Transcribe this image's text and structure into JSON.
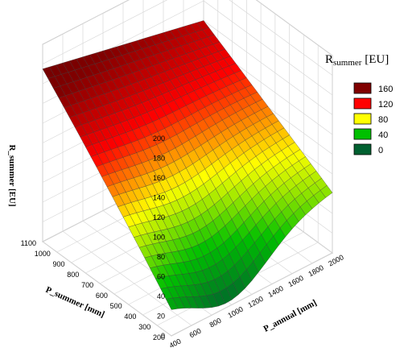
{
  "chart_data": {
    "type": "surface3d",
    "title": "",
    "zlabel": "R_summer [EU]",
    "xlabel": "P_summer [mm]",
    "ylabel": "P_annual [mm]",
    "xlim": [
      200,
      1100
    ],
    "ylim": [
      400,
      2000
    ],
    "zlim": [
      0,
      200
    ],
    "x_ticks": [
      "200",
      "300",
      "400",
      "500",
      "600",
      "700",
      "800",
      "900",
      "1000",
      "1100"
    ],
    "y_ticks": [
      "400",
      "600",
      "800",
      "1000",
      "1200",
      "1400",
      "1600",
      "1800",
      "2000"
    ],
    "z_ticks": [
      "0",
      "20",
      "40",
      "60",
      "80",
      "100",
      "120",
      "140",
      "160",
      "180",
      "200"
    ],
    "legend_position": "right",
    "legend": {
      "title_main": "R",
      "title_sub": "summer",
      "title_unit": " [EU]",
      "entries": [
        {
          "label": "160",
          "color": "#800000"
        },
        {
          "label": "120",
          "color": "#ff0000"
        },
        {
          "label": "80",
          "color": "#ffff00"
        },
        {
          "label": "40",
          "color": "#00c000"
        },
        {
          "label": "0",
          "color": "#006030"
        }
      ]
    },
    "surface_corners": [
      {
        "x": 200,
        "y": 400,
        "z": 37
      },
      {
        "x": 1100,
        "y": 400,
        "z": 175
      },
      {
        "x": 1100,
        "y": 2000,
        "z": 140
      },
      {
        "x": 200,
        "y": 2000,
        "z": 62
      }
    ],
    "surface_min": {
      "x": 200,
      "y": 1000,
      "z": 5
    },
    "colormap_stops": [
      {
        "z": 0,
        "color": "#006030"
      },
      {
        "z": 40,
        "color": "#00c000"
      },
      {
        "z": 80,
        "color": "#ffff00"
      },
      {
        "z": 120,
        "color": "#ff0000"
      },
      {
        "z": 160,
        "color": "#800000"
      },
      {
        "z": 200,
        "color": "#600000"
      }
    ]
  }
}
